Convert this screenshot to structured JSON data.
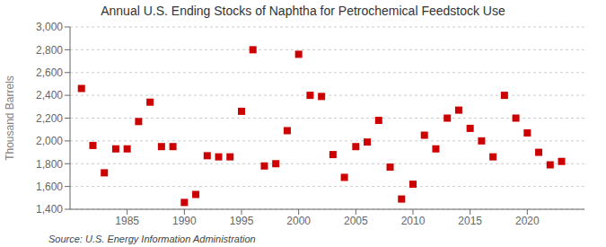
{
  "chart_data": {
    "type": "scatter",
    "title": "Annual U.S. Ending Stocks of Naphtha for Petrochemical Feedstock Use",
    "ylabel": "Thousand Barrels",
    "annotations": [
      "Source: U.S. Energy Information Administration"
    ],
    "x": [
      1981,
      1982,
      1983,
      1984,
      1985,
      1986,
      1987,
      1988,
      1989,
      1990,
      1991,
      1992,
      1993,
      1994,
      1995,
      1996,
      1997,
      1998,
      1999,
      2000,
      2001,
      2002,
      2003,
      2004,
      2005,
      2006,
      2007,
      2008,
      2009,
      2010,
      2011,
      2012,
      2013,
      2014,
      2015,
      2016,
      2017,
      2018,
      2019,
      2020,
      2021,
      2022,
      2023
    ],
    "values": [
      2460,
      1960,
      1720,
      1930,
      1930,
      2170,
      2340,
      1950,
      1950,
      1460,
      1530,
      1870,
      1860,
      1860,
      2260,
      2800,
      1780,
      1800,
      2090,
      2760,
      2400,
      2390,
      1880,
      1680,
      1950,
      1990,
      2180,
      1770,
      1490,
      1620,
      2050,
      1930,
      2200,
      2270,
      2110,
      2000,
      1860,
      2400,
      2200,
      2070,
      1900,
      1790,
      1820
    ],
    "color": "#cc0000",
    "marker": "square",
    "xlim": [
      1980,
      2025
    ],
    "xticks": [
      1985,
      1990,
      1995,
      2000,
      2005,
      2010,
      2015,
      2020
    ],
    "ylim": [
      1400,
      3000
    ],
    "yticks": [
      {
        "value": 1400,
        "label": "1,400"
      },
      {
        "value": 1600,
        "label": "1,600"
      },
      {
        "value": 1800,
        "label": "1,800"
      },
      {
        "value": 2000,
        "label": "2,000"
      },
      {
        "value": 2200,
        "label": "2,200"
      },
      {
        "value": 2400,
        "label": "2,400"
      },
      {
        "value": 2600,
        "label": "2,600"
      },
      {
        "value": 2800,
        "label": "2,800"
      },
      {
        "value": 3000,
        "label": "3,000"
      }
    ],
    "grid": true
  }
}
